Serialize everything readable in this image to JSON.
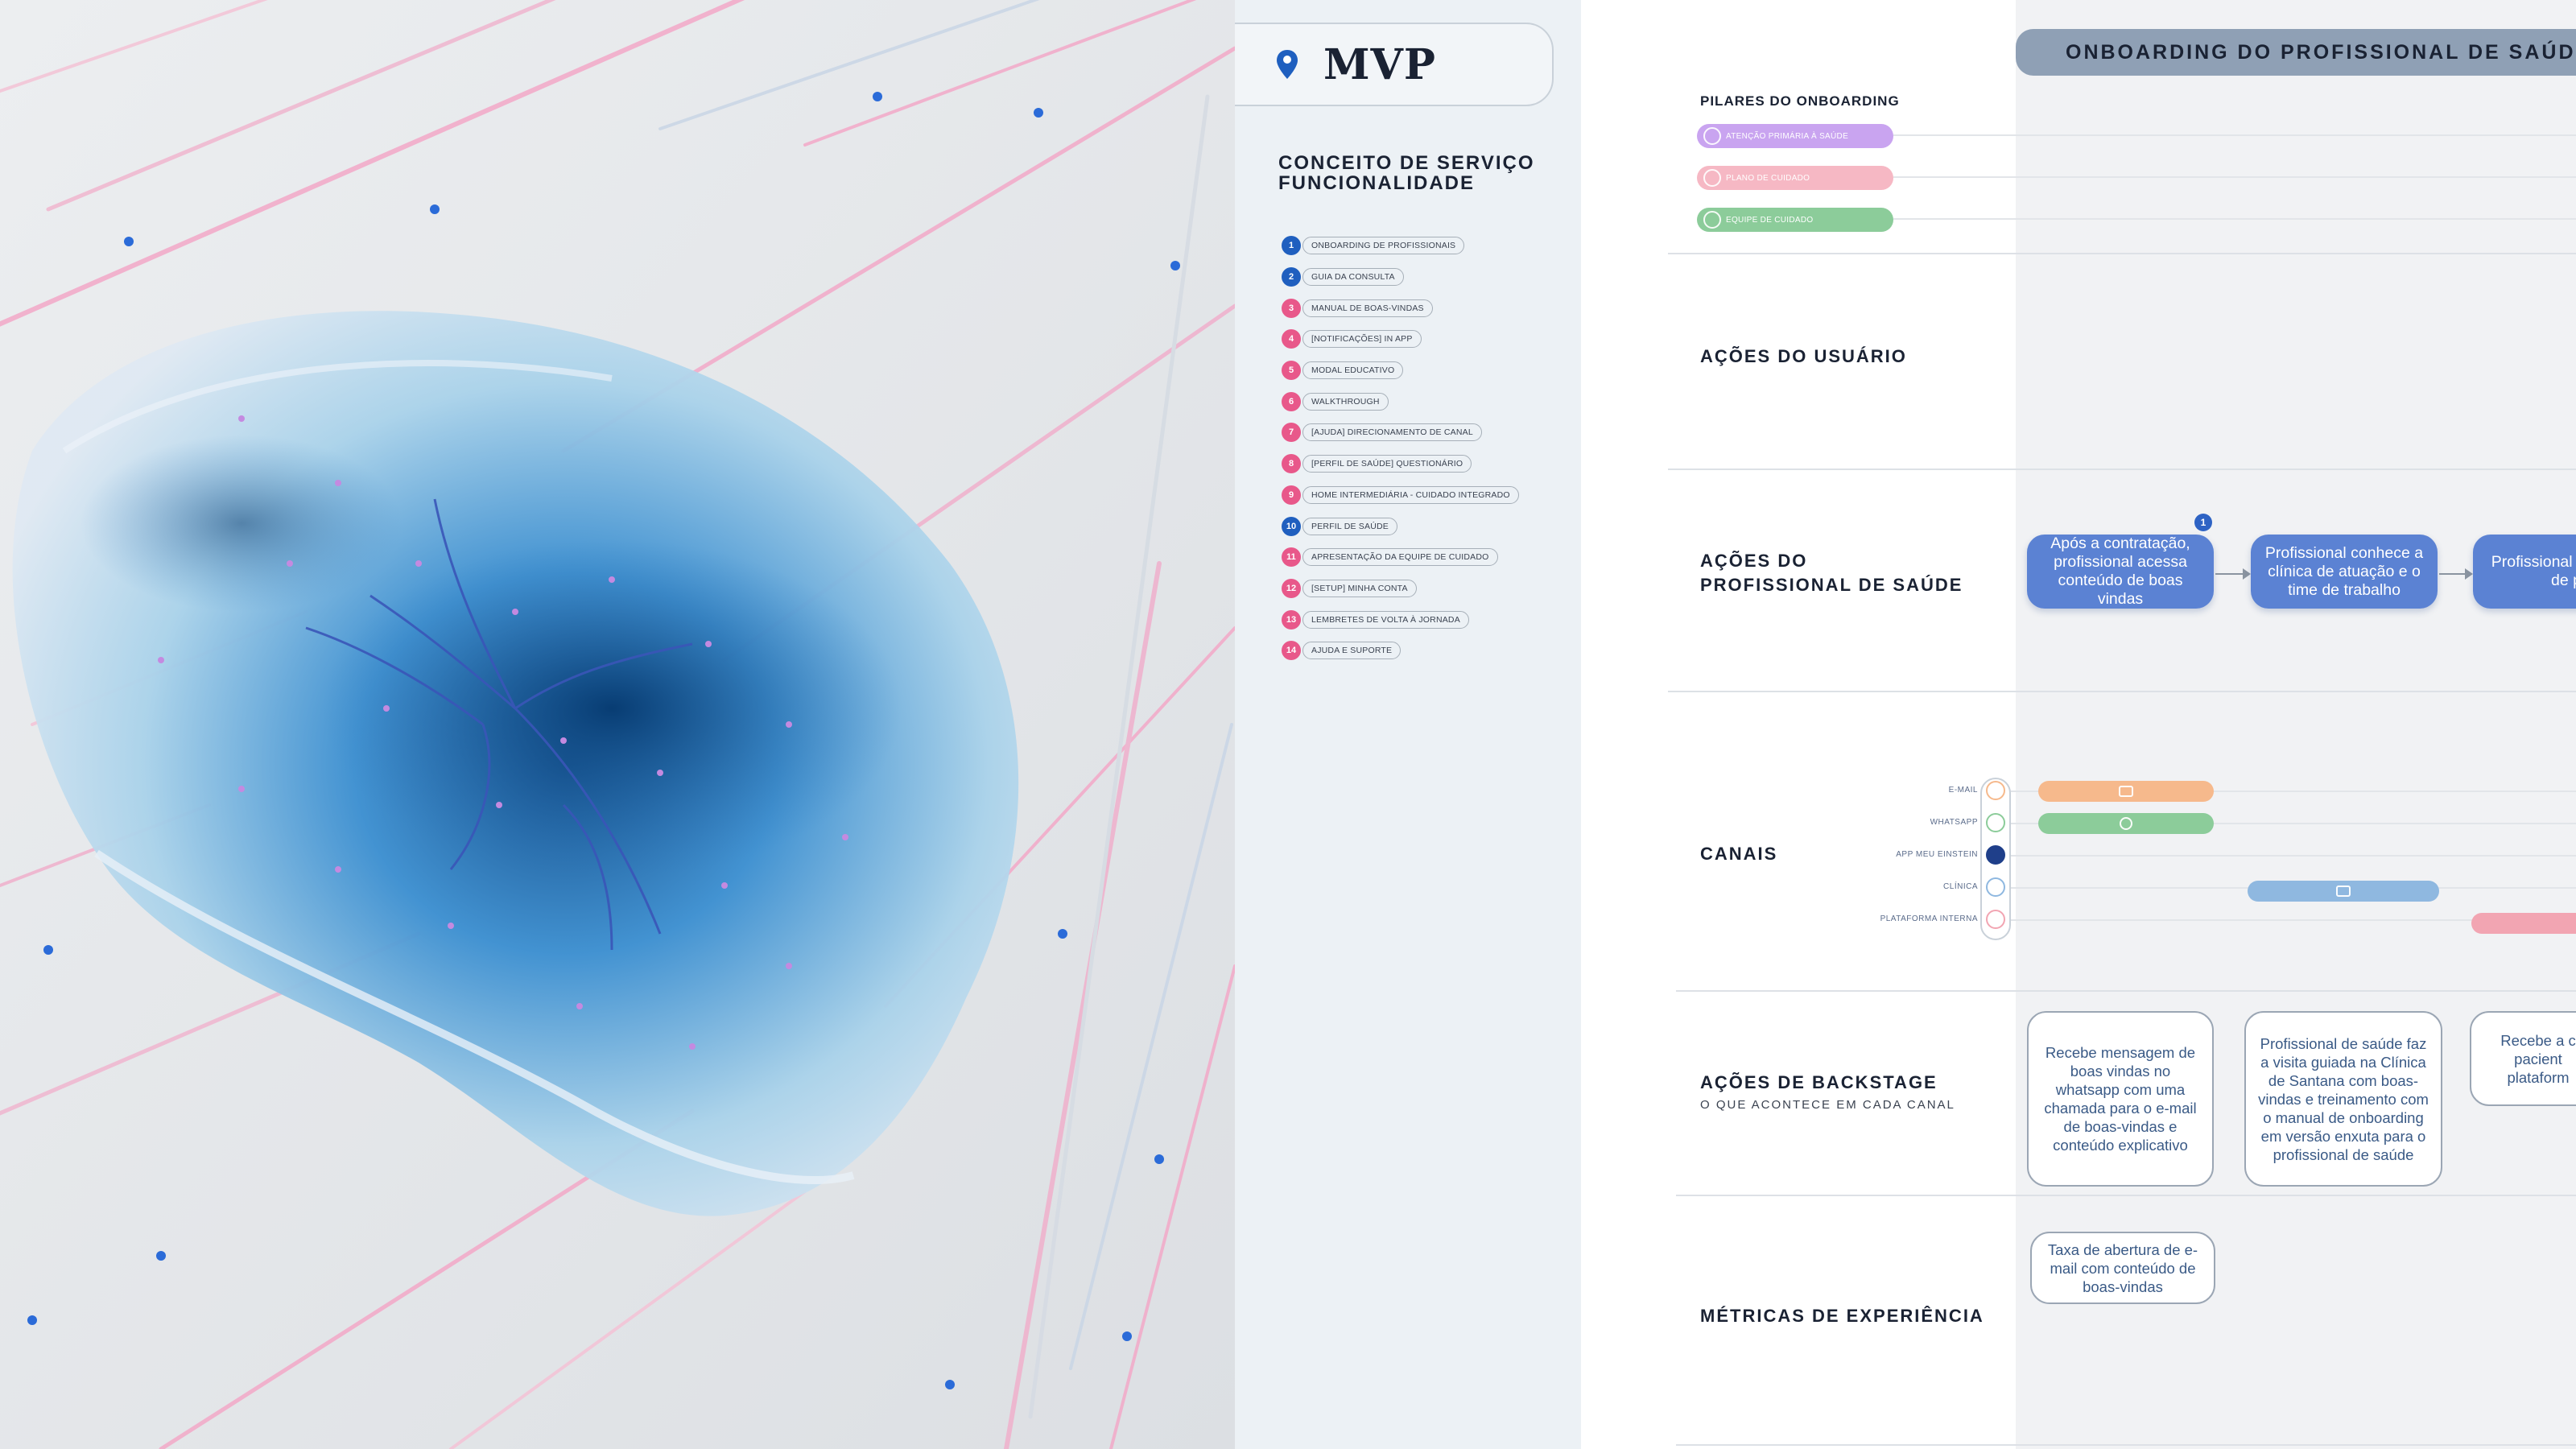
{
  "mvp": {
    "title": "MVP"
  },
  "concept": {
    "line1": "CONCEITO DE SERVIÇO",
    "line2": "FUNCIONALIDADE"
  },
  "features": [
    {
      "num": "1",
      "label": "ONBOARDING DE PROFISSIONAIS",
      "color": "#1f5fbf"
    },
    {
      "num": "2",
      "label": "GUIA DA CONSULTA",
      "color": "#1f5fbf"
    },
    {
      "num": "3",
      "label": "MANUAL DE BOAS-VINDAS",
      "color": "#e8588a"
    },
    {
      "num": "4",
      "label": "[NOTIFICAÇÕES] IN APP",
      "color": "#e8588a"
    },
    {
      "num": "5",
      "label": "MODAL EDUCATIVO",
      "color": "#e8588a"
    },
    {
      "num": "6",
      "label": "WALKTHROUGH",
      "color": "#e8588a"
    },
    {
      "num": "7",
      "label": "[AJUDA] DIRECIONAMENTO DE CANAL",
      "color": "#e8588a"
    },
    {
      "num": "8",
      "label": "[PERFIL DE SAÚDE] QUESTIONÁRIO",
      "color": "#e8588a"
    },
    {
      "num": "9",
      "label": "HOME INTERMEDIÁRIA - CUIDADO INTEGRADO",
      "color": "#e8588a"
    },
    {
      "num": "10",
      "label": "PERFIL DE SAÚDE",
      "color": "#1f5fbf"
    },
    {
      "num": "11",
      "label": "APRESENTAÇÃO DA EQUIPE DE CUIDADO",
      "color": "#e8588a"
    },
    {
      "num": "12",
      "label": "[SETUP] MINHA CONTA",
      "color": "#e8588a"
    },
    {
      "num": "13",
      "label": "LEMBRETES DE VOLTA À JORNADA",
      "color": "#e8588a"
    },
    {
      "num": "14",
      "label": "AJUDA E SUPORTE",
      "color": "#e8588a"
    }
  ],
  "journey": {
    "header": "ONBOARDING DO PROFISSIONAL DE SAÚDE",
    "pillars_title": "PILARES DO ONBOARDING",
    "pillars": [
      {
        "label": "ATENÇÃO PRIMÁRIA À SAÚDE",
        "color": "#c9a4f0"
      },
      {
        "label": "PLANO DE CUIDADO",
        "color": "#f6b8c4"
      },
      {
        "label": "EQUIPE DE CUIDADO",
        "color": "#8ccc9a"
      }
    ],
    "rows": {
      "user_actions": "AÇÕES DO USUÁRIO",
      "pro_actions_l1": "AÇÕES DO",
      "pro_actions_l2": "PROFISSIONAL DE SAÚDE",
      "channels": "CANAIS",
      "backstage": "AÇÕES DE BACKSTAGE",
      "backstage_sub": "O QUE ACONTECE EM CADA CANAL",
      "metrics": "MÉTRICAS DE EXPERIÊNCIA"
    },
    "badge": "1",
    "steps": [
      "Após a contratação, profissional acessa conteúdo de boas vindas",
      "Profissional conhece a clínica de atuação e o time de trabalho",
      "Profissional c carteira de p"
    ],
    "channels": [
      {
        "label": "E-MAIL",
        "color": "#f6b98c"
      },
      {
        "label": "WHATSAPP",
        "color": "#8ccc9a"
      },
      {
        "label": "APP MEU EINSTEIN",
        "color": "#1f3f8a"
      },
      {
        "label": "CLÍNICA",
        "color": "#8fb8e0"
      },
      {
        "label": "PLATAFORMA INTERNA",
        "color": "#f2a5b2"
      }
    ],
    "backstage_cards": [
      "Recebe mensagem de boas vindas no whatsapp com uma chamada para o e-mail de boas-vindas e conteúdo explicativo",
      "Profissional de saúde faz a visita guiada na Clínica de Santana com boas-vindas e treinamento com o manual de onboarding em versão enxuta para o profissional de saúde",
      "Recebe a c pacient plataform"
    ],
    "metric_cards": [
      "Taxa de abertura de e-mail com conteúdo de boas-vindas"
    ]
  }
}
